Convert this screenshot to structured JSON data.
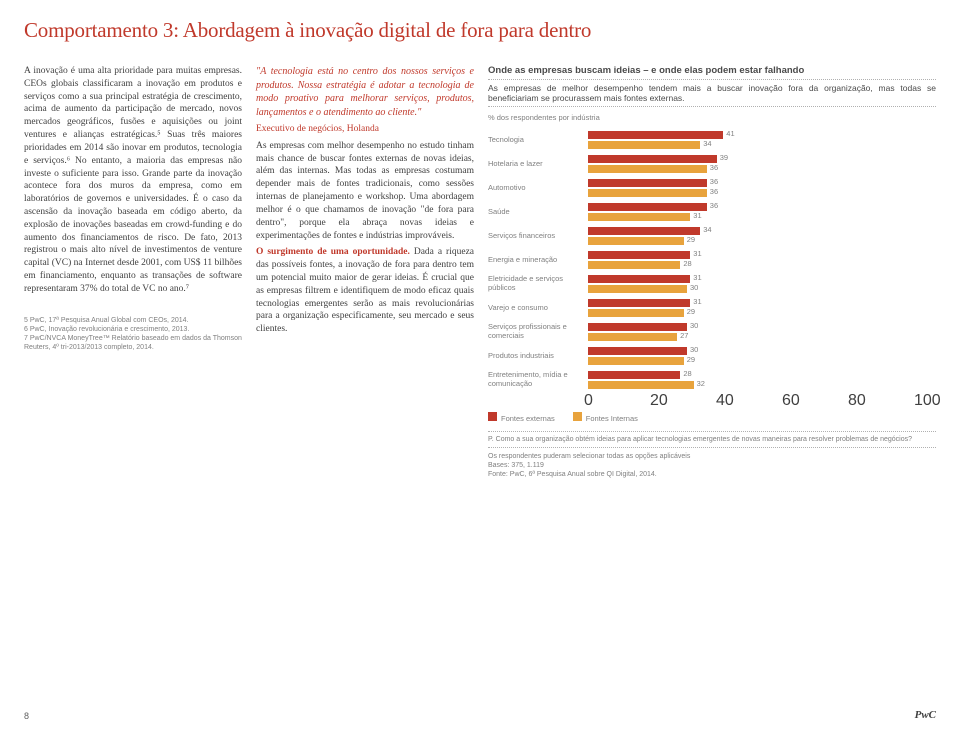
{
  "title": "Comportamento 3: Abordagem à inovação digital de fora para dentro",
  "col1": {
    "p1": "A inovação é uma alta prioridade para muitas empresas. CEOs globais classificaram a inovação em produtos e serviços como a sua principal estratégia de crescimento, acima de aumento da participação de mercado, novos mercados geográficos, fusões e aquisições ou joint ventures e alianças estratégicas.⁵ Suas três maiores prioridades em 2014 são inovar em produtos, tecnologia e serviços.⁶ No entanto, a maioria das empresas não investe o suficiente para isso. Grande parte da inovação acontece fora dos muros da empresa, como em laboratórios de governos e universidades. É o caso da ascensão da inovação baseada em código aberto, da explosão de inovações baseadas em crowd-funding e do aumento dos financiamentos de risco. De fato, 2013 registrou o mais alto nível de investimentos de venture capital (VC) na Internet desde 2001, com US$ 11 bilhões em financiamento, enquanto as transações de software representaram 37% do total de VC no ano.⁷",
    "fn1": "5 PwC, 17ª Pesquisa Anual Global com CEOs, 2014.",
    "fn2": "6 PwC, Inovação revolucionária e crescimento, 2013.",
    "fn3": "7 PwC/NVCA MoneyTree™ Relatório baseado em dados da Thomson Reuters, 4º tri-2013/2013 completo, 2014."
  },
  "col2": {
    "quote": "\"A tecnologia está no centro dos nossos serviços e produtos. Nossa estratégia é adotar a tecnologia de modo proativo para melhorar serviços, produtos, lançamentos e o atendimento ao cliente.\"",
    "quote_attr": "Executivo de negócios, Holanda",
    "p1": "As empresas com melhor desempenho no estudo tinham mais chance de buscar fontes externas de novas ideias, além das internas. Mas todas as empresas costumam depender mais de fontes tradicionais, como sessões internas de planejamento e workshop. Uma abordagem melhor é o que chamamos de inovação \"de fora para dentro\", porque ela abraça novas ideias e experimentações de fontes e indústrias improváveis.",
    "sub": "O surgimento de uma oportunidade.",
    "p2": " Dada a riqueza das possíveis fontes, a inovação de fora para dentro tem um potencial muito maior de gerar ideias. É crucial que as empresas filtrem e identifiquem de modo eficaz quais tecnologias emergentes serão as mais revolucionárias para a organização especificamente, seu mercado e seus clientes."
  },
  "chart": {
    "title": "Onde as empresas buscam ideias – e onde elas podem estar falhando",
    "subtitle": "As empresas de melhor desempenho tendem mais a buscar inovação fora da organização, mas todas se beneficiariam se procurassem mais fontes externas.",
    "axis_label": "% dos respondentes por indústria",
    "categories": [
      {
        "label": "Tecnologia",
        "ext": 41,
        "int": 34
      },
      {
        "label": "Hotelaria e lazer",
        "ext": 39,
        "int": 36
      },
      {
        "label": "Automotivo",
        "ext": 36,
        "int": 36
      },
      {
        "label": "Saúde",
        "ext": 36,
        "int": 31
      },
      {
        "label": "Serviços financeiros",
        "ext": 34,
        "int": 29
      },
      {
        "label": "Energia e mineração",
        "ext": 31,
        "int": 28
      },
      {
        "label": "Eletricidade e serviços públicos",
        "ext": 31,
        "int": 30
      },
      {
        "label": "Varejo e consumo",
        "ext": 31,
        "int": 29
      },
      {
        "label": "Serviços profissionais e comerciais",
        "ext": 30,
        "int": 27
      },
      {
        "label": "Produtos industriais",
        "ext": 30,
        "int": 29
      },
      {
        "label": "Entretenimento, mídia e comunicação",
        "ext": 28,
        "int": 32
      }
    ],
    "xmax": 100,
    "xticks": [
      0,
      20,
      40,
      60,
      80,
      100
    ],
    "legend_ext": "Fontes externas",
    "legend_int": "Fontes Internas",
    "color_ext": "#c0392b",
    "color_int": "#e8a33d",
    "foot1": "P. Como a sua organização obtém ideias para aplicar tecnologias emergentes de novas maneiras para resolver problemas de negócios?",
    "foot2": "Os respondentes puderam selecionar todas as opções aplicáveis",
    "foot3": "Bases: 375, 1.119",
    "foot4": "Fonte: PwC, 6ª Pesquisa Anual sobre QI Digital, 2014."
  },
  "page_number": "8",
  "brand": "PwC"
}
